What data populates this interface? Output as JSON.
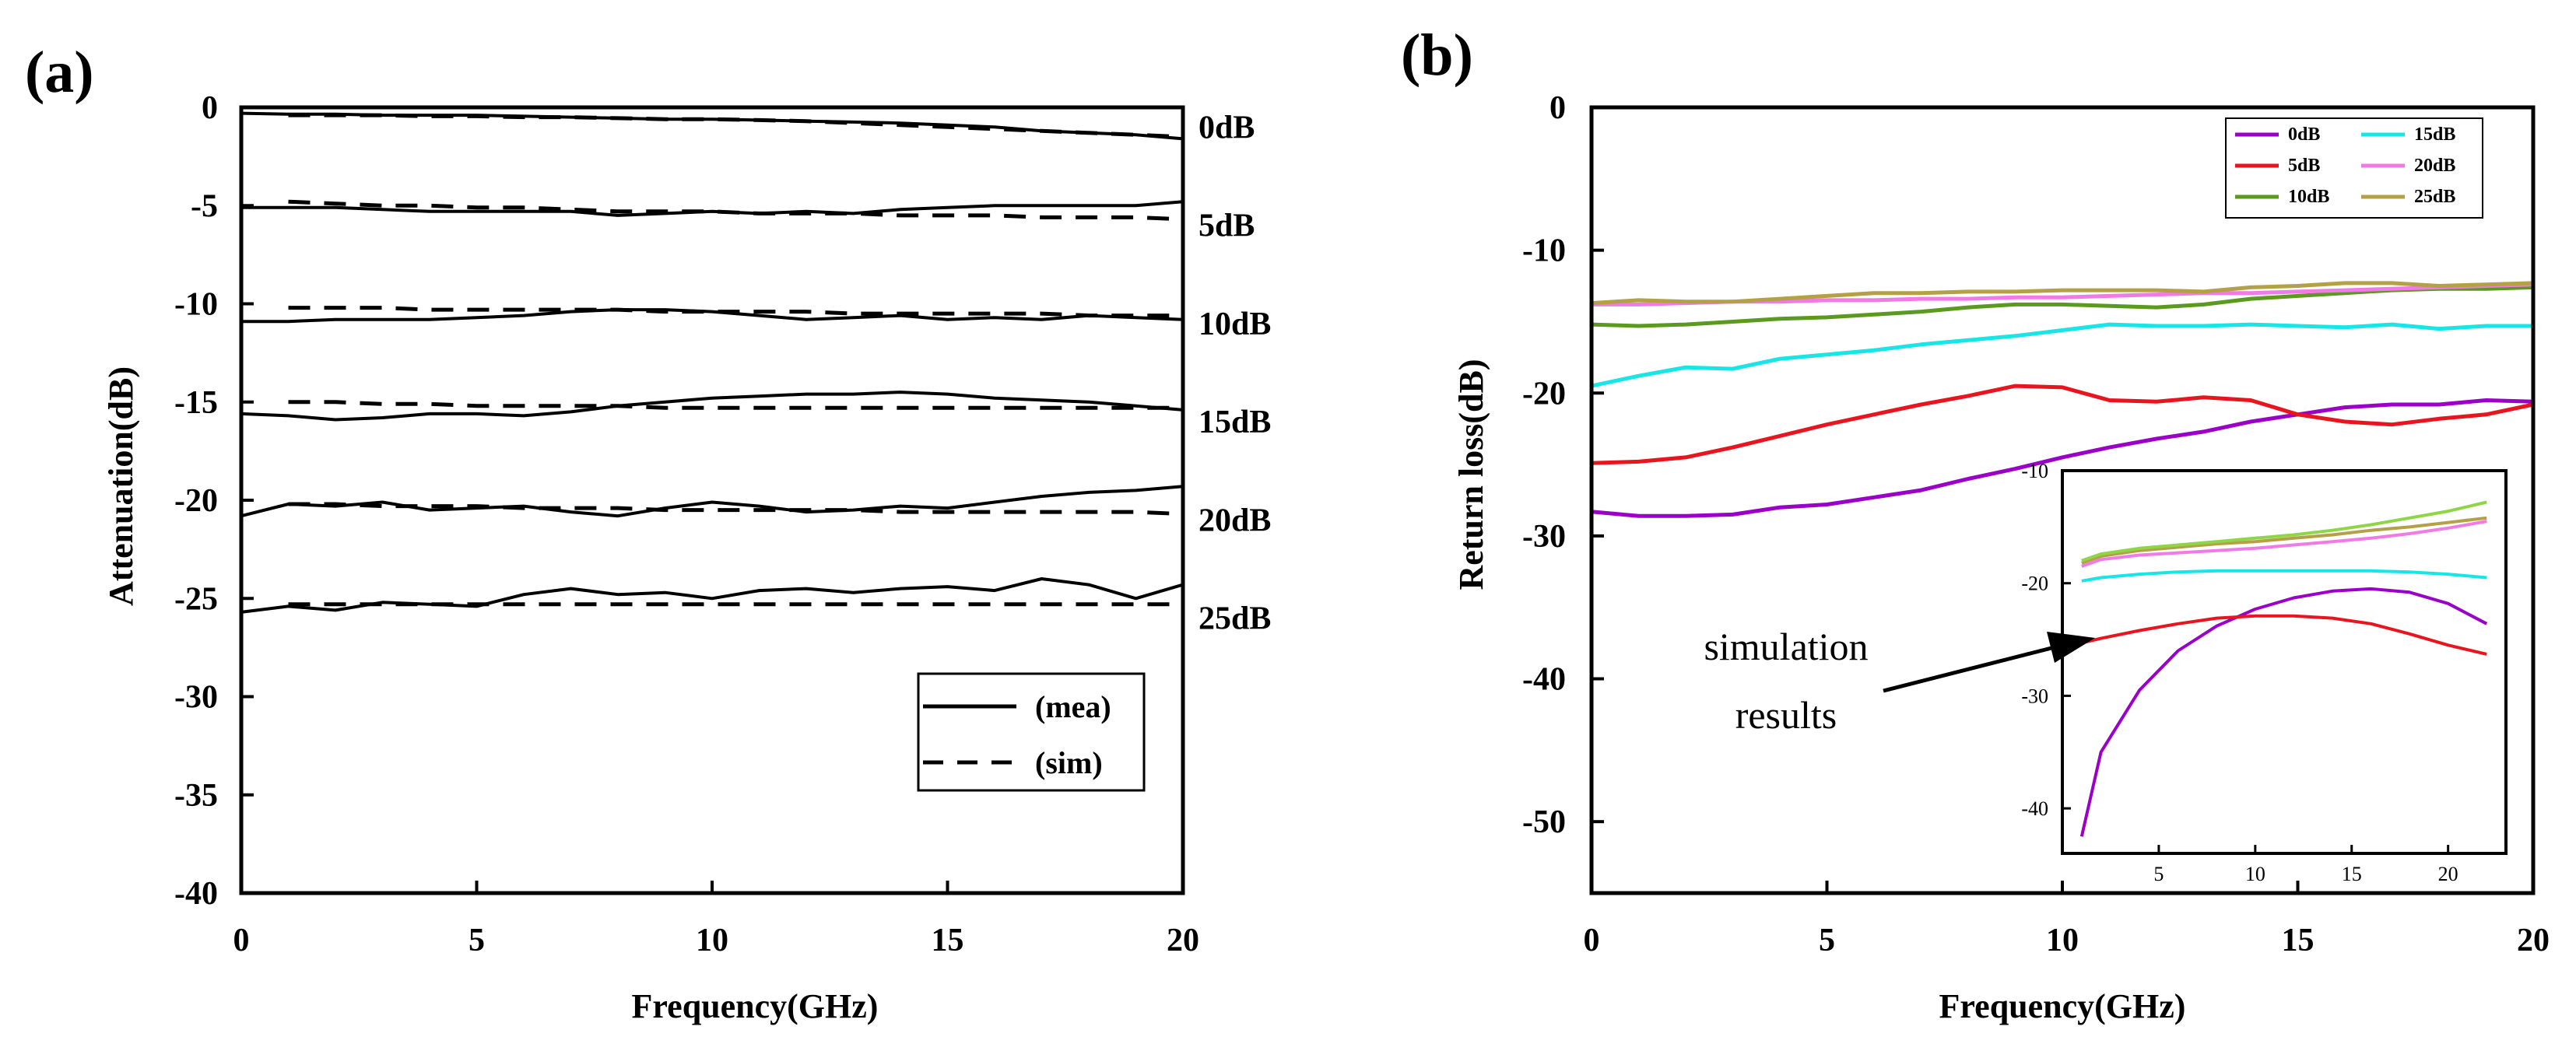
{
  "chart_data": [
    {
      "panel": "(a)",
      "type": "line",
      "xlabel": "Frequency(GHz)",
      "ylabel": "Attenuation(dB)",
      "xlim": [
        0,
        20
      ],
      "ylim": [
        -40,
        0
      ],
      "xticks": [
        0,
        5,
        10,
        15,
        20
      ],
      "yticks": [
        0,
        -5,
        -10,
        -15,
        -20,
        -25,
        -30,
        -35,
        -40
      ],
      "legend": [
        "(mea)",
        "(sim)"
      ],
      "legend_position": "lower-right",
      "series_labels": [
        "0dB",
        "5dB",
        "10dB",
        "15dB",
        "20dB",
        "25dB"
      ],
      "x": [
        0,
        1,
        2,
        3,
        4,
        5,
        6,
        7,
        8,
        9,
        10,
        11,
        12,
        13,
        14,
        15,
        16,
        17,
        18,
        19,
        20
      ],
      "series": [
        {
          "name": "0dB (mea)",
          "style": "solid",
          "values": [
            -0.3,
            -0.35,
            -0.35,
            -0.4,
            -0.4,
            -0.4,
            -0.45,
            -0.5,
            -0.55,
            -0.6,
            -0.6,
            -0.65,
            -0.7,
            -0.75,
            -0.8,
            -0.9,
            -1.0,
            -1.2,
            -1.3,
            -1.4,
            -1.6
          ]
        },
        {
          "name": "0dB (sim)",
          "style": "dashed",
          "values": [
            null,
            -0.4,
            -0.4,
            -0.4,
            -0.45,
            -0.45,
            -0.5,
            -0.5,
            -0.55,
            -0.6,
            -0.6,
            -0.65,
            -0.7,
            -0.8,
            -0.9,
            -1.0,
            -1.1,
            -1.2,
            -1.3,
            -1.4,
            -1.5
          ]
        },
        {
          "name": "5dB (mea)",
          "style": "solid",
          "values": [
            -5.1,
            -5.1,
            -5.1,
            -5.2,
            -5.3,
            -5.3,
            -5.3,
            -5.3,
            -5.5,
            -5.4,
            -5.3,
            -5.4,
            -5.3,
            -5.4,
            -5.2,
            -5.1,
            -5.0,
            -5.0,
            -5.0,
            -5.0,
            -4.8
          ]
        },
        {
          "name": "5dB (sim)",
          "style": "dashed",
          "values": [
            null,
            -4.8,
            -4.9,
            -5.0,
            -5.0,
            -5.1,
            -5.1,
            -5.2,
            -5.3,
            -5.3,
            -5.3,
            -5.4,
            -5.4,
            -5.4,
            -5.5,
            -5.5,
            -5.5,
            -5.6,
            -5.6,
            -5.6,
            -5.7
          ]
        },
        {
          "name": "10dB (mea)",
          "style": "solid",
          "values": [
            -10.9,
            -10.9,
            -10.8,
            -10.8,
            -10.8,
            -10.7,
            -10.6,
            -10.4,
            -10.3,
            -10.3,
            -10.4,
            -10.6,
            -10.8,
            -10.7,
            -10.6,
            -10.8,
            -10.7,
            -10.8,
            -10.6,
            -10.7,
            -10.8
          ]
        },
        {
          "name": "10dB (sim)",
          "style": "dashed",
          "values": [
            null,
            -10.2,
            -10.2,
            -10.2,
            -10.3,
            -10.3,
            -10.3,
            -10.3,
            -10.3,
            -10.4,
            -10.4,
            -10.4,
            -10.4,
            -10.5,
            -10.5,
            -10.5,
            -10.5,
            -10.5,
            -10.6,
            -10.6,
            -10.6
          ]
        },
        {
          "name": "15dB (mea)",
          "style": "solid",
          "values": [
            -15.6,
            -15.7,
            -15.9,
            -15.8,
            -15.6,
            -15.6,
            -15.7,
            -15.5,
            -15.2,
            -15.0,
            -14.8,
            -14.7,
            -14.6,
            -14.6,
            -14.5,
            -14.6,
            -14.8,
            -14.9,
            -15.0,
            -15.2,
            -15.4
          ]
        },
        {
          "name": "15dB (sim)",
          "style": "dashed",
          "values": [
            null,
            -15.0,
            -15.0,
            -15.1,
            -15.1,
            -15.2,
            -15.2,
            -15.2,
            -15.2,
            -15.3,
            -15.3,
            -15.3,
            -15.3,
            -15.3,
            -15.3,
            -15.3,
            -15.3,
            -15.3,
            -15.3,
            -15.3,
            -15.3
          ]
        },
        {
          "name": "20dB (mea)",
          "style": "solid",
          "values": [
            -20.8,
            -20.2,
            -20.3,
            -20.1,
            -20.5,
            -20.4,
            -20.3,
            -20.6,
            -20.8,
            -20.4,
            -20.1,
            -20.3,
            -20.6,
            -20.5,
            -20.3,
            -20.4,
            -20.1,
            -19.8,
            -19.6,
            -19.5,
            -19.3
          ]
        },
        {
          "name": "20dB (sim)",
          "style": "dashed",
          "values": [
            null,
            -20.2,
            -20.2,
            -20.3,
            -20.3,
            -20.3,
            -20.4,
            -20.4,
            -20.4,
            -20.5,
            -20.5,
            -20.5,
            -20.5,
            -20.5,
            -20.6,
            -20.6,
            -20.6,
            -20.6,
            -20.6,
            -20.6,
            -20.7
          ]
        },
        {
          "name": "25dB (mea)",
          "style": "solid",
          "values": [
            -25.7,
            -25.4,
            -25.6,
            -25.2,
            -25.3,
            -25.4,
            -24.8,
            -24.5,
            -24.8,
            -24.7,
            -25.0,
            -24.6,
            -24.5,
            -24.7,
            -24.5,
            -24.4,
            -24.6,
            -24.0,
            -24.3,
            -25.0,
            -24.3
          ]
        },
        {
          "name": "25dB (sim)",
          "style": "dashed",
          "values": [
            null,
            -25.3,
            -25.3,
            -25.3,
            -25.3,
            -25.3,
            -25.3,
            -25.3,
            -25.3,
            -25.3,
            -25.3,
            -25.3,
            -25.3,
            -25.3,
            -25.3,
            -25.3,
            -25.3,
            -25.3,
            -25.3,
            -25.3,
            -25.3
          ]
        }
      ]
    },
    {
      "panel": "(b)",
      "type": "line",
      "xlabel": "Frequency(GHz)",
      "ylabel": "Return loss(dB)",
      "xlim": [
        0,
        20
      ],
      "ylim": [
        -55,
        0
      ],
      "xticks": [
        0,
        5,
        10,
        15,
        20
      ],
      "yticks": [
        0,
        -10,
        -20,
        -30,
        -40,
        -50
      ],
      "legend_position": "top-right",
      "annotation": {
        "line1": "simulation",
        "line2": "results"
      },
      "x": [
        0,
        1,
        2,
        3,
        4,
        5,
        6,
        7,
        8,
        9,
        10,
        11,
        12,
        13,
        14,
        15,
        16,
        17,
        18,
        19,
        20
      ],
      "series": [
        {
          "name": "0dB",
          "color": "#9b00c8",
          "values": [
            -28.3,
            -28.6,
            -28.6,
            -28.5,
            -28.0,
            -27.8,
            -27.3,
            -26.8,
            -26.0,
            -25.3,
            -24.5,
            -23.8,
            -23.2,
            -22.7,
            -22.0,
            -21.5,
            -21.0,
            -20.8,
            -20.8,
            -20.5,
            -20.6
          ]
        },
        {
          "name": "5dB",
          "color": "#e8141e",
          "values": [
            -24.9,
            -24.8,
            -24.5,
            -23.8,
            -23.0,
            -22.2,
            -21.5,
            -20.8,
            -20.2,
            -19.5,
            -19.6,
            -20.5,
            -20.6,
            -20.3,
            -20.5,
            -21.5,
            -22.0,
            -22.2,
            -21.8,
            -21.5,
            -20.8
          ]
        },
        {
          "name": "10dB",
          "color": "#5a9a1e",
          "values": [
            -15.2,
            -15.3,
            -15.2,
            -15.0,
            -14.8,
            -14.7,
            -14.5,
            -14.3,
            -14.0,
            -13.8,
            -13.8,
            -13.9,
            -14.0,
            -13.8,
            -13.4,
            -13.2,
            -13.0,
            -12.8,
            -12.7,
            -12.7,
            -12.6
          ]
        },
        {
          "name": "15dB",
          "color": "#18e6e6",
          "values": [
            -19.5,
            -18.8,
            -18.2,
            -18.3,
            -17.6,
            -17.3,
            -17.0,
            -16.6,
            -16.3,
            -16.0,
            -15.6,
            -15.2,
            -15.3,
            -15.3,
            -15.2,
            -15.3,
            -15.4,
            -15.2,
            -15.5,
            -15.3,
            -15.3
          ]
        },
        {
          "name": "20dB",
          "color": "#f07ae6",
          "values": [
            -13.8,
            -13.8,
            -13.7,
            -13.6,
            -13.6,
            -13.5,
            -13.5,
            -13.4,
            -13.4,
            -13.3,
            -13.3,
            -13.2,
            -13.1,
            -13.0,
            -13.0,
            -12.9,
            -12.8,
            -12.7,
            -12.6,
            -12.5,
            -12.4
          ]
        },
        {
          "name": "25dB",
          "color": "#b4a046",
          "values": [
            -13.7,
            -13.5,
            -13.6,
            -13.6,
            -13.4,
            -13.2,
            -13.0,
            -13.0,
            -12.9,
            -12.9,
            -12.8,
            -12.8,
            -12.8,
            -12.9,
            -12.6,
            -12.5,
            -12.3,
            -12.3,
            -12.5,
            -12.4,
            -12.3
          ]
        }
      ],
      "inset": {
        "type": "line",
        "title": "simulation results",
        "xlim": [
          0,
          23
        ],
        "ylim": [
          -44,
          -10
        ],
        "xticks": [
          5,
          10,
          15,
          20
        ],
        "yticks": [
          -10,
          -20,
          -30,
          -40
        ],
        "x": [
          1,
          2,
          4,
          6,
          8,
          10,
          12,
          14,
          16,
          18,
          20,
          22
        ],
        "series": [
          {
            "name": "0dB",
            "color": "#9b00c8",
            "values": [
              -42.5,
              -35.0,
              -29.5,
              -26.0,
              -23.8,
              -22.3,
              -21.3,
              -20.7,
              -20.5,
              -20.8,
              -21.8,
              -23.6
            ]
          },
          {
            "name": "5dB",
            "color": "#e8141e",
            "values": [
              -25.3,
              -24.9,
              -24.2,
              -23.6,
              -23.1,
              -22.9,
              -22.9,
              -23.1,
              -23.6,
              -24.5,
              -25.5,
              -26.3
            ]
          },
          {
            "name": "15dB",
            "color": "#18e6e6",
            "values": [
              -19.8,
              -19.5,
              -19.2,
              -19.0,
              -18.9,
              -18.9,
              -18.9,
              -18.9,
              -18.9,
              -19.0,
              -19.2,
              -19.5
            ]
          },
          {
            "name": "20dB",
            "color": "#f07ae6",
            "values": [
              -18.5,
              -17.9,
              -17.5,
              -17.3,
              -17.1,
              -16.9,
              -16.6,
              -16.3,
              -16.0,
              -15.6,
              -15.1,
              -14.5
            ]
          },
          {
            "name": "25dB",
            "color": "#b4a046",
            "values": [
              -18.2,
              -17.6,
              -17.1,
              -16.8,
              -16.5,
              -16.3,
              -16.0,
              -15.7,
              -15.3,
              -15.0,
              -14.6,
              -14.2
            ]
          },
          {
            "name": "10dB",
            "color": "#8ed646",
            "values": [
              -18.0,
              -17.4,
              -16.9,
              -16.6,
              -16.3,
              -16.0,
              -15.7,
              -15.3,
              -14.8,
              -14.2,
              -13.6,
              -12.8
            ]
          }
        ]
      }
    }
  ]
}
